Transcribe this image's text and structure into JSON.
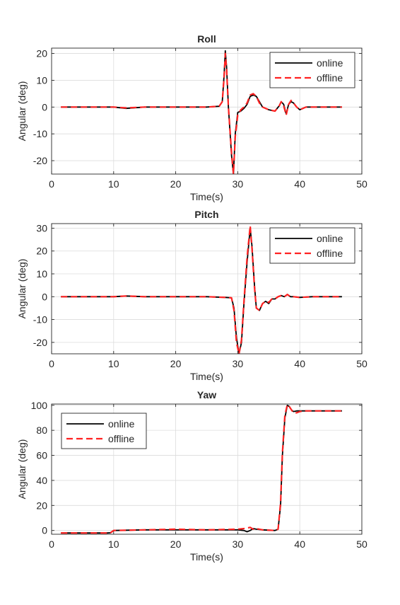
{
  "colors": {
    "online": "#000000",
    "offline": "#ff2222",
    "grid": "#dcdcdc",
    "axis": "#262626"
  },
  "chart_data": [
    {
      "type": "line",
      "title": "Roll",
      "xlabel": "Time(s)",
      "ylabel": "Angular (deg)",
      "xlim": [
        0,
        50
      ],
      "ylim": [
        -25,
        22
      ],
      "xticks": [
        0,
        10,
        20,
        30,
        40,
        50
      ],
      "yticks": [
        -20,
        -10,
        0,
        10,
        20
      ],
      "grid": true,
      "legend_position": "top-right",
      "series": [
        {
          "name": "online",
          "style": "solid",
          "x": [
            1.5,
            5,
            10,
            12,
            15,
            20,
            25,
            27,
            27.5,
            27.8,
            28.0,
            28.2,
            28.5,
            29.0,
            29.3,
            29.6,
            30.0,
            30.5,
            31.0,
            31.5,
            32.0,
            32.5,
            33.0,
            33.5,
            34.0,
            34.5,
            35.0,
            36.0,
            36.7,
            37.0,
            37.4,
            37.8,
            38.2,
            38.6,
            39.0,
            39.5,
            40.0,
            40.5,
            41.0,
            42.0,
            44.0,
            46.8
          ],
          "y": [
            0,
            0,
            0,
            -0.5,
            0,
            0,
            0,
            0.3,
            2,
            12,
            21,
            15,
            0,
            -18,
            -25,
            -10,
            -2,
            -1.5,
            -0.5,
            1,
            4,
            4.5,
            4,
            2,
            0,
            -0.5,
            -1,
            -1.5,
            0.5,
            2,
            1,
            -2.5,
            1,
            2,
            1.5,
            0,
            -1,
            -0.5,
            0,
            0,
            0,
            0
          ]
        },
        {
          "name": "offline",
          "style": "dashed",
          "x": [
            1.5,
            5,
            10,
            12,
            15,
            20,
            25,
            27,
            27.5,
            27.8,
            28.0,
            28.2,
            28.5,
            29.0,
            29.3,
            29.6,
            30.0,
            30.5,
            31.0,
            31.5,
            32.0,
            32.5,
            33.0,
            33.5,
            34.0,
            34.5,
            35.0,
            36.0,
            36.7,
            37.0,
            37.4,
            37.8,
            38.2,
            38.6,
            39.0,
            39.5,
            40.0,
            40.5,
            41.0,
            42.0,
            44.0,
            46.8
          ],
          "y": [
            0,
            0,
            0,
            -0.3,
            0,
            0,
            0,
            0.3,
            2,
            11,
            20,
            14,
            0,
            -17,
            -25,
            -11,
            -3,
            -1,
            0,
            1.5,
            4.5,
            5,
            4,
            1.5,
            0,
            -0.5,
            -1,
            -1.5,
            0.5,
            2,
            0.5,
            -3,
            1,
            2.5,
            1.5,
            0,
            -1,
            -0.5,
            0,
            0,
            0,
            0
          ]
        }
      ]
    },
    {
      "type": "line",
      "title": "Pitch",
      "xlabel": "Time(s)",
      "ylabel": "Angular (deg)",
      "xlim": [
        0,
        50
      ],
      "ylim": [
        -25,
        32
      ],
      "xticks": [
        0,
        10,
        20,
        30,
        40,
        50
      ],
      "yticks": [
        -20,
        -10,
        0,
        10,
        20,
        30
      ],
      "grid": true,
      "legend_position": "top-right",
      "series": [
        {
          "name": "online",
          "style": "solid",
          "x": [
            1.5,
            5,
            10,
            12,
            15,
            20,
            25,
            28,
            29,
            29.4,
            29.8,
            30.2,
            30.6,
            31.0,
            31.5,
            32.0,
            32.3,
            32.7,
            33.0,
            33.5,
            34.0,
            34.5,
            35.0,
            35.5,
            36.0,
            36.5,
            37.0,
            37.5,
            38.0,
            38.5,
            39.0,
            40.0,
            42.0,
            46.8
          ],
          "y": [
            0,
            0,
            0,
            0.3,
            0,
            0,
            0,
            -0.3,
            -0.5,
            -5,
            -18,
            -25,
            -20,
            -3,
            15,
            30,
            22,
            5,
            -5,
            -6,
            -3,
            -2,
            -3,
            -1,
            -1,
            0,
            0.5,
            0,
            1,
            0,
            0,
            -0.3,
            0,
            0
          ]
        },
        {
          "name": "offline",
          "style": "dashed",
          "x": [
            1.5,
            5,
            10,
            12,
            15,
            20,
            25,
            28,
            29,
            29.4,
            29.8,
            30.2,
            30.6,
            31.0,
            31.5,
            32.0,
            32.3,
            32.7,
            33.0,
            33.5,
            34.0,
            34.5,
            35.0,
            35.5,
            36.0,
            36.5,
            37.0,
            37.5,
            38.0,
            38.5,
            39.0,
            40.0,
            42.0,
            46.8
          ],
          "y": [
            0,
            0,
            0,
            0.3,
            0,
            0,
            0,
            -0.3,
            -0.5,
            -6,
            -20,
            -25,
            -19,
            -2,
            17,
            31,
            21,
            4,
            -5,
            -6,
            -3,
            -2,
            -2.5,
            -1,
            -1,
            0,
            0.5,
            0,
            1,
            0,
            0,
            -0.3,
            0,
            0
          ]
        }
      ]
    },
    {
      "type": "line",
      "title": "Yaw",
      "xlabel": "Time(s)",
      "ylabel": "Angular (deg)",
      "xlim": [
        0,
        50
      ],
      "ylim": [
        -3,
        101
      ],
      "xticks": [
        0,
        10,
        20,
        30,
        40,
        50
      ],
      "yticks": [
        0,
        20,
        40,
        60,
        80,
        100
      ],
      "grid": true,
      "legend_position": "top-left",
      "series": [
        {
          "name": "online",
          "style": "solid",
          "x": [
            1.5,
            5,
            9.0,
            9.5,
            10,
            15,
            20,
            25,
            30,
            31,
            31.5,
            32,
            32.5,
            33,
            34,
            36,
            36.5,
            36.9,
            37.2,
            37.6,
            38.0,
            38.3,
            38.7,
            39.0,
            39.5,
            40,
            41,
            44,
            46.8
          ],
          "y": [
            -2,
            -2,
            -2,
            -1.8,
            0,
            0.5,
            0.5,
            0.5,
            0.5,
            0,
            -1,
            0,
            1.5,
            1,
            0.5,
            0,
            1,
            20,
            60,
            90,
            100,
            99,
            96,
            95,
            95.5,
            95.5,
            95.5,
            95.5,
            95.5
          ]
        },
        {
          "name": "offline",
          "style": "dashed",
          "x": [
            1.5,
            5,
            9.0,
            9.5,
            10,
            15,
            20,
            25,
            30,
            31,
            31.5,
            32,
            32.5,
            33,
            34,
            36,
            36.5,
            36.9,
            37.2,
            37.6,
            38.0,
            38.3,
            38.7,
            39.0,
            39.5,
            40,
            41,
            44,
            46.8
          ],
          "y": [
            -2,
            -2,
            -2,
            -1.8,
            0,
            0.5,
            1,
            0.5,
            1,
            1.5,
            2,
            2.5,
            1,
            1.5,
            0.5,
            0,
            1,
            22,
            62,
            92,
            100.5,
            99,
            96,
            94,
            94,
            95,
            95.5,
            95.5,
            95.5
          ]
        }
      ]
    }
  ]
}
